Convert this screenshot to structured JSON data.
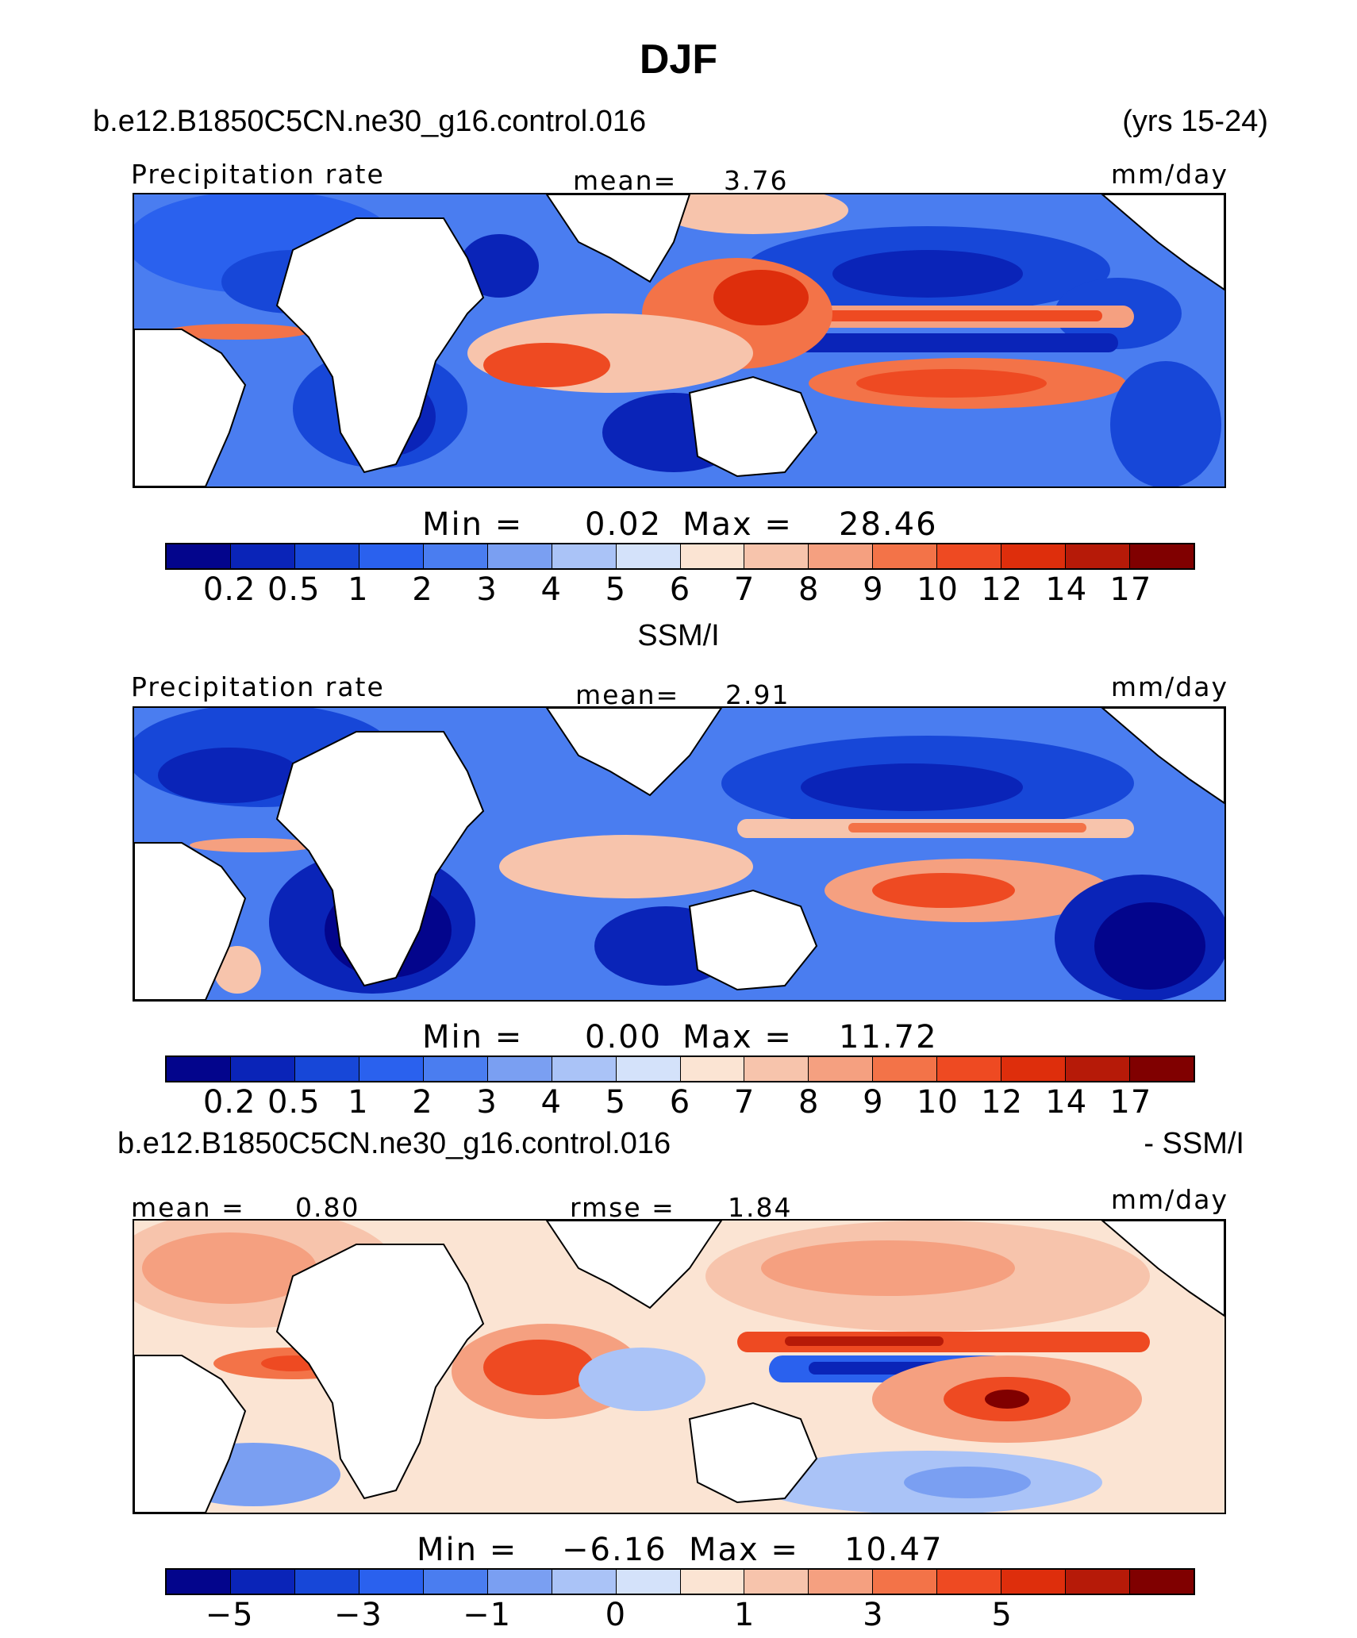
{
  "figure": {
    "title": "DJF"
  },
  "panel1": {
    "case": "b.e12.B1850C5CN.ne30_g16.control.016",
    "years": "(yrs 15-24)",
    "variable": "Precipitation rate",
    "stat_label": "mean=",
    "stat_value": "3.76",
    "units": "mm/day",
    "min_label": "Min  =",
    "min_value": "0.02",
    "max_label": "Max  =",
    "max_value": "28.46",
    "colorbar_ticks": [
      "0.2",
      "0.5",
      "1",
      "2",
      "3",
      "4",
      "5",
      "6",
      "7",
      "8",
      "9",
      "10",
      "12",
      "14",
      "17"
    ]
  },
  "panel2": {
    "title": "SSM/I",
    "variable": "Precipitation rate",
    "stat_label": "mean=",
    "stat_value": "2.91",
    "units": "mm/day",
    "min_label": "Min  =",
    "min_value": "0.00",
    "max_label": "Max  =",
    "max_value": "11.72",
    "colorbar_ticks": [
      "0.2",
      "0.5",
      "1",
      "2",
      "3",
      "4",
      "5",
      "6",
      "7",
      "8",
      "9",
      "10",
      "12",
      "14",
      "17"
    ]
  },
  "panel3": {
    "case": "b.e12.B1850C5CN.ne30_g16.control.016",
    "suffix": "- SSM/I",
    "mean_label": "mean  =",
    "mean_value": "0.80",
    "rmse_label": "rmse  =",
    "rmse_value": "1.84",
    "units": "mm/day",
    "min_label": "Min  =",
    "min_value": "−6.16",
    "max_label": "Max  =",
    "max_value": "10.47",
    "colorbar_ticks": [
      "−5",
      "−3",
      "−1",
      "0",
      "1",
      "3",
      "5"
    ]
  },
  "colors": {
    "sequential": [
      "#03058c",
      "#0a24b8",
      "#1747d8",
      "#2a61ee",
      "#4a7df0",
      "#7a9ff2",
      "#aac3f7",
      "#d4e2fa",
      "#fbe4d3",
      "#f7c4ac",
      "#f5a080",
      "#f37348",
      "#ee4a22",
      "#de2e0c",
      "#b61a08",
      "#800000"
    ],
    "diverging": [
      "#03058c",
      "#0a24b8",
      "#1747d8",
      "#2a61ee",
      "#4a7df0",
      "#7a9ff2",
      "#aac3f7",
      "#d4e2fa",
      "#fbe4d3",
      "#f7c4ac",
      "#f5a080",
      "#f37348",
      "#ee4a22",
      "#de2e0c",
      "#b61a08",
      "#800000"
    ],
    "land": "#ffffff",
    "coast": "#000000"
  }
}
